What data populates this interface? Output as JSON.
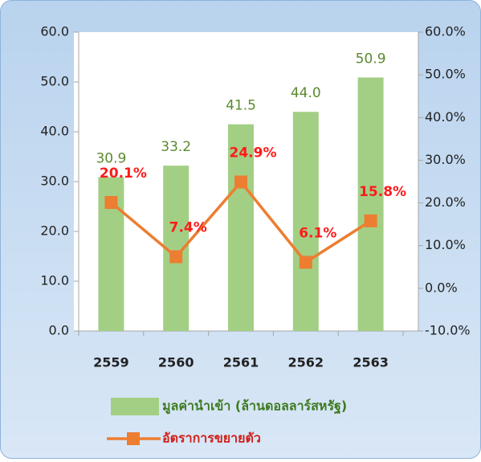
{
  "chart_data": {
    "type": "bar_line",
    "categories": [
      "2559",
      "2560",
      "2561",
      "2562",
      "2563"
    ],
    "ylim": [
      0,
      60
    ],
    "yticks": [
      {
        "value": 0,
        "label": "0.0"
      },
      {
        "value": 10,
        "label": "10.0"
      },
      {
        "value": 20,
        "label": "20.0"
      },
      {
        "value": 30,
        "label": "30.0"
      },
      {
        "value": 40,
        "label": "40.0"
      },
      {
        "value": 50,
        "label": "50.0"
      },
      {
        "value": 60,
        "label": "60.0"
      }
    ],
    "y2lim": [
      -10,
      60
    ],
    "y2ticks": [
      {
        "value": -10,
        "label": "-10.0%"
      },
      {
        "value": 0,
        "label": "0.0%"
      },
      {
        "value": 10,
        "label": "10.0%"
      },
      {
        "value": 20,
        "label": "20.0%"
      },
      {
        "value": 30,
        "label": "30.0%"
      },
      {
        "value": 40,
        "label": "40.0%"
      },
      {
        "value": 50,
        "label": "50.0%"
      },
      {
        "value": 60,
        "label": "60.0%"
      }
    ],
    "series": [
      {
        "name": "มูลค่านำเข้า (ล้านดอลลาร์สหรัฐ)",
        "type": "bar",
        "color": "#a3cf84",
        "values": [
          30.9,
          33.2,
          41.5,
          44.0,
          50.9
        ],
        "value_labels": [
          "30.9",
          "33.2",
          "41.5",
          "44.0",
          "50.9"
        ]
      },
      {
        "name": "อัตราการขยายตัว",
        "type": "line",
        "axis": "y2",
        "color": "#ed7d31",
        "values": [
          20.1,
          7.4,
          24.9,
          6.1,
          15.8
        ],
        "value_labels": [
          "20.1%",
          "7.4%",
          "24.9%",
          "6.1%",
          "15.8%"
        ]
      }
    ],
    "legend": "bottom"
  }
}
